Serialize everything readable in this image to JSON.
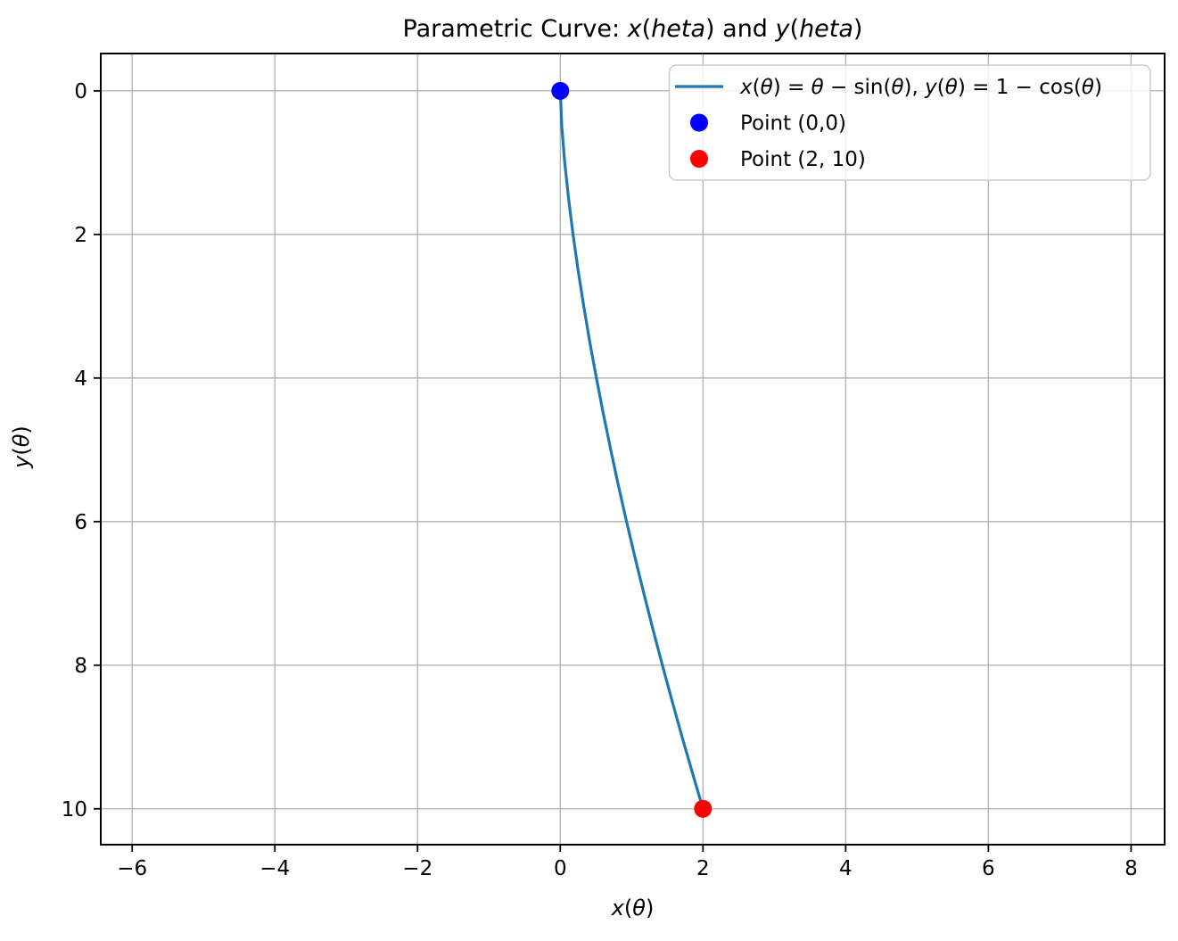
{
  "chart_data": {
    "type": "line",
    "title": {
      "plain": "Parametric Curve: x(heta) and y(heta)",
      "segments": [
        [
          "Parametric Curve: ",
          0
        ],
        [
          "x",
          1
        ],
        [
          "(",
          0
        ],
        [
          "heta",
          1
        ],
        [
          ") and ",
          0
        ],
        [
          "y",
          1
        ],
        [
          "(",
          0
        ],
        [
          "heta",
          1
        ],
        [
          ")",
          0
        ]
      ]
    },
    "xlabel": {
      "plain": "x(θ)",
      "segments": [
        [
          "x",
          1
        ],
        [
          "(",
          0
        ],
        [
          "θ",
          1
        ],
        [
          ")",
          0
        ]
      ]
    },
    "ylabel": {
      "plain": "y(θ)",
      "segments": [
        [
          "y",
          1
        ],
        [
          "(",
          0
        ],
        [
          "θ",
          1
        ],
        [
          ")",
          0
        ]
      ]
    },
    "xlim": [
      -6.44,
      8.47
    ],
    "ylim": [
      -0.52,
      10.5
    ],
    "y_axis_inverted": true,
    "x_ticks": [
      -6,
      -4,
      -2,
      0,
      2,
      4,
      6,
      8
    ],
    "y_ticks": [
      0,
      2,
      4,
      6,
      8,
      10
    ],
    "grid": true,
    "legend_position": "upper right",
    "series": [
      {
        "name": "x(θ) = θ − sin(θ), y(θ) = 1 − cos(θ)",
        "name_segments": [
          [
            "x",
            1
          ],
          [
            "(",
            0
          ],
          [
            "θ",
            1
          ],
          [
            ") = ",
            0
          ],
          [
            "θ",
            1
          ],
          [
            " − sin(",
            0
          ],
          [
            "θ",
            1
          ],
          [
            "), ",
            0
          ],
          [
            "y",
            1
          ],
          [
            "(",
            0
          ],
          [
            "θ",
            1
          ],
          [
            ") = 1 − cos(",
            0
          ],
          [
            "θ",
            1
          ],
          [
            ")",
            0
          ]
        ],
        "color": "#1f77b4",
        "linewidth": 3.2,
        "points": [
          [
            0,
            0
          ],
          [
            0.022,
            0.5
          ],
          [
            0.063,
            1
          ],
          [
            0.116,
            1.5
          ],
          [
            0.179,
            2
          ],
          [
            0.25,
            2.5
          ],
          [
            0.329,
            3
          ],
          [
            0.414,
            3.5
          ],
          [
            0.506,
            4
          ],
          [
            0.604,
            4.5
          ],
          [
            0.707,
            5
          ],
          [
            0.815,
            5.5
          ],
          [
            0.929,
            6
          ],
          [
            1.048,
            6.5
          ],
          [
            1.171,
            7
          ],
          [
            1.299,
            7.5
          ],
          [
            1.431,
            8
          ],
          [
            1.567,
            8.5
          ],
          [
            1.708,
            9
          ],
          [
            1.852,
            9.5
          ],
          [
            2,
            10
          ]
        ]
      }
    ],
    "scatter": [
      {
        "label": "Point (0,0)",
        "x": 0,
        "y": 0,
        "color": "#0000ff",
        "radius": 10
      },
      {
        "label": "Point (2, 10)",
        "x": 2,
        "y": 10,
        "color": "#ff0000",
        "radius": 10
      }
    ],
    "colors": {
      "background": "#ffffff",
      "grid": "#b0b0b0",
      "spine": "#000000",
      "text": "#000000",
      "legend_border": "#cccccc",
      "legend_bg": "rgba(255,255,255,0.8)"
    }
  }
}
